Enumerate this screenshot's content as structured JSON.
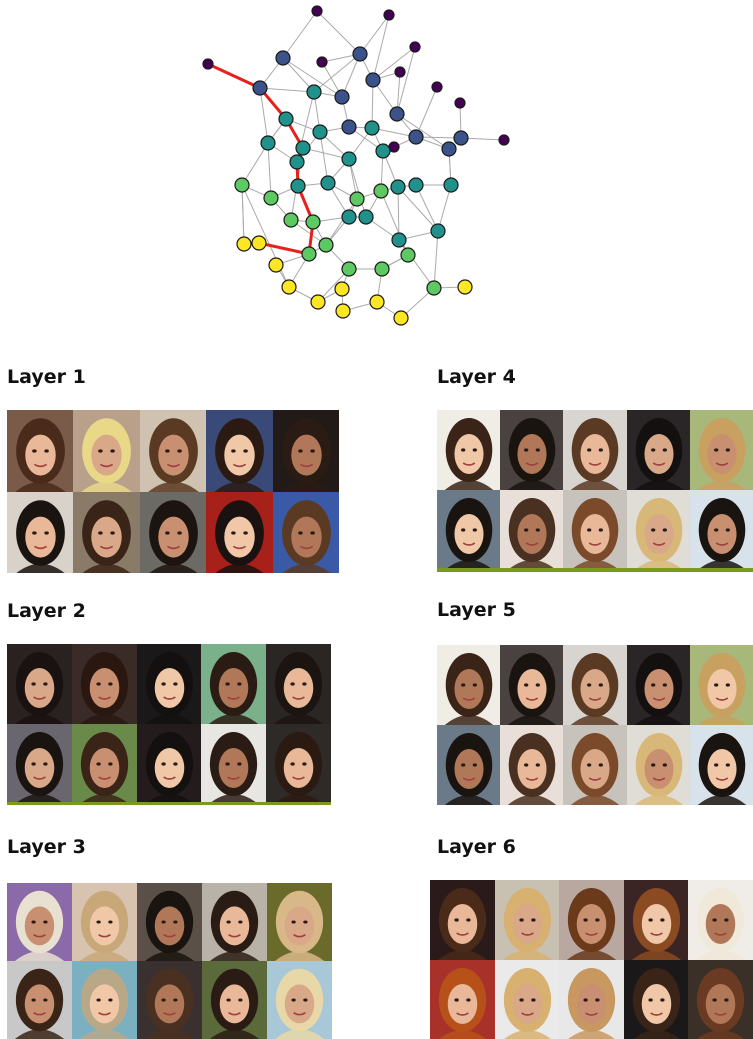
{
  "layers": [
    {
      "title": "Layer 1"
    },
    {
      "title": "Layer 2"
    },
    {
      "title": "Layer 3"
    },
    {
      "title": "Layer 4"
    },
    {
      "title": "Layer 5"
    },
    {
      "title": "Layer 6"
    }
  ],
  "graph": {
    "node_colors": {
      "purple": "#440154",
      "indigo": "#3b528b",
      "teal": "#21918c",
      "green": "#5ec962",
      "yellow": "#fde725"
    },
    "edge_color": "#aaaaaa",
    "path_color": "#e8201c",
    "node_stroke": "#1a1a1a"
  }
}
